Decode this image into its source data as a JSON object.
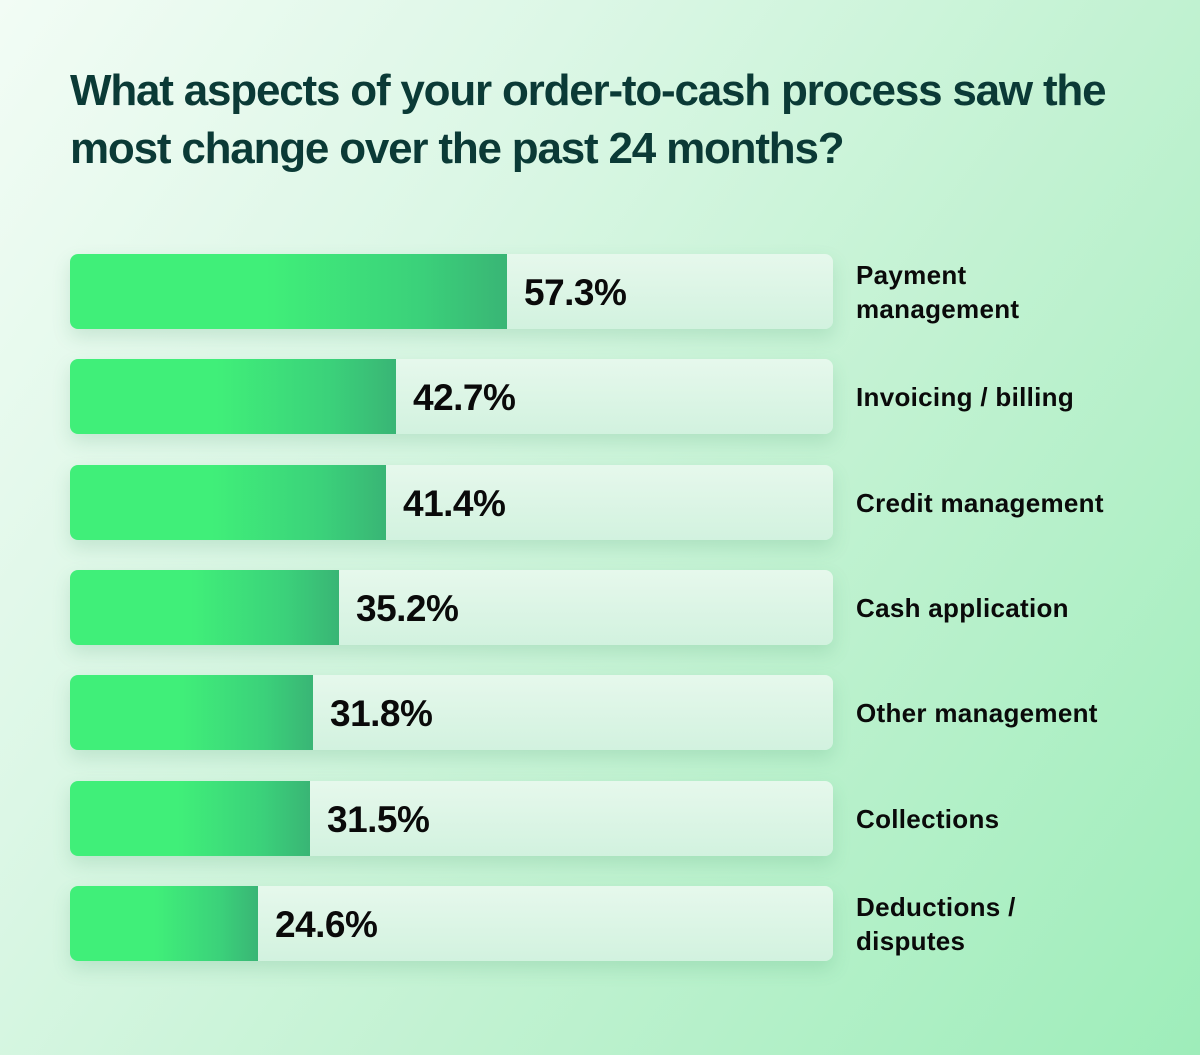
{
  "title": "What aspects of your order-to-cash process saw the most change over the past 24 months?",
  "colors": {
    "bar_fill_start": "#40ef79",
    "bar_fill_end": "#39b575",
    "track": "#dcf5e6",
    "title": "#0b3a36",
    "text": "#0a0a0a"
  },
  "rows": [
    {
      "label": "Payment management",
      "value_text": "57.3%",
      "value": 57.3
    },
    {
      "label": "Invoicing / billing",
      "value_text": "42.7%",
      "value": 42.7
    },
    {
      "label": "Credit management",
      "value_text": "41.4%",
      "value": 41.4
    },
    {
      "label": "Cash application",
      "value_text": "35.2%",
      "value": 35.2
    },
    {
      "label": "Other management",
      "value_text": "31.8%",
      "value": 31.8
    },
    {
      "label": "Collections",
      "value_text": "31.5%",
      "value": 31.5
    },
    {
      "label": "Deductions / disputes",
      "value_text": "24.6%",
      "value": 24.6
    }
  ],
  "chart_data": {
    "type": "bar",
    "orientation": "horizontal",
    "title": "What aspects of your order-to-cash process saw the most change over the past 24 months?",
    "categories": [
      "Payment management",
      "Invoicing / billing",
      "Credit management",
      "Cash application",
      "Other management",
      "Collections",
      "Deductions / disputes"
    ],
    "values": [
      57.3,
      42.7,
      41.4,
      35.2,
      31.8,
      31.5,
      24.6
    ],
    "unit": "%",
    "xlabel": "",
    "ylabel": "",
    "xlim": [
      0,
      100
    ],
    "grid": false,
    "legend": "none",
    "data_labels": true
  }
}
